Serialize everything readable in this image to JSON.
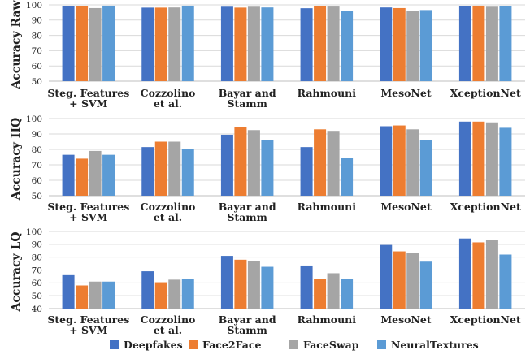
{
  "categories": [
    [
      "Steg. Features",
      "+ SVM"
    ],
    [
      "Cozzolino",
      "et al."
    ],
    [
      "Bayar and",
      "Stamm"
    ],
    [
      "Rahmouni"
    ],
    [
      "MesoNet"
    ],
    [
      "XceptionNet"
    ]
  ],
  "legend": [
    "Deepfakes",
    "Face2Face",
    "FaceSwap",
    "NeuralTextures"
  ],
  "colors": {
    "Deepfakes": "#4472C4",
    "Face2Face": "#ED7D31",
    "FaceSwap": "#A5A5A5",
    "NeuralTextures": "#5B9BD5",
    "grid": "#d9d9d9"
  },
  "legend_position": "bottom",
  "chart_data": [
    {
      "type": "bar",
      "ylabel": "Accuracy Raw",
      "ylim": [
        50,
        100
      ],
      "yticks": [
        50,
        60,
        70,
        80,
        90,
        100
      ],
      "grid": true,
      "series": [
        {
          "name": "Deepfakes",
          "values": [
            99.0,
            98.2,
            98.8,
            97.8,
            98.3,
            99.3
          ]
        },
        {
          "name": "Face2Face",
          "values": [
            99.0,
            98.2,
            98.2,
            99.0,
            97.9,
            99.5
          ]
        },
        {
          "name": "FaceSwap",
          "values": [
            97.9,
            98.3,
            98.8,
            98.9,
            96.2,
            98.8
          ]
        },
        {
          "name": "NeuralTextures",
          "values": [
            99.5,
            99.5,
            98.3,
            96.1,
            96.6,
            99.1
          ]
        }
      ]
    },
    {
      "type": "bar",
      "ylabel": "Accuracy HQ",
      "ylim": [
        50,
        100
      ],
      "yticks": [
        50,
        60,
        70,
        80,
        90,
        100
      ],
      "grid": true,
      "series": [
        {
          "name": "Deepfakes",
          "values": [
            76.5,
            81.5,
            89.5,
            81.5,
            95.0,
            98.0
          ]
        },
        {
          "name": "Face2Face",
          "values": [
            74.0,
            85.0,
            94.5,
            93.0,
            95.5,
            98.0
          ]
        },
        {
          "name": "FaceSwap",
          "values": [
            79.0,
            85.0,
            92.5,
            92.0,
            93.0,
            97.5
          ]
        },
        {
          "name": "NeuralTextures",
          "values": [
            76.5,
            80.5,
            86.0,
            74.5,
            86.0,
            94.0
          ]
        }
      ]
    },
    {
      "type": "bar",
      "ylabel": "Accuracy LQ",
      "ylim": [
        40,
        100
      ],
      "yticks": [
        40,
        50,
        60,
        70,
        80,
        90,
        100
      ],
      "grid": true,
      "series": [
        {
          "name": "Deepfakes",
          "values": [
            66.0,
            69.0,
            81.0,
            73.5,
            89.5,
            94.5
          ]
        },
        {
          "name": "Face2Face",
          "values": [
            58.0,
            60.5,
            78.0,
            63.0,
            84.5,
            91.5
          ]
        },
        {
          "name": "FaceSwap",
          "values": [
            61.0,
            62.5,
            77.0,
            67.5,
            83.5,
            93.5
          ]
        },
        {
          "name": "NeuralTextures",
          "values": [
            61.0,
            63.0,
            72.5,
            63.0,
            76.5,
            82.0
          ]
        }
      ]
    }
  ]
}
